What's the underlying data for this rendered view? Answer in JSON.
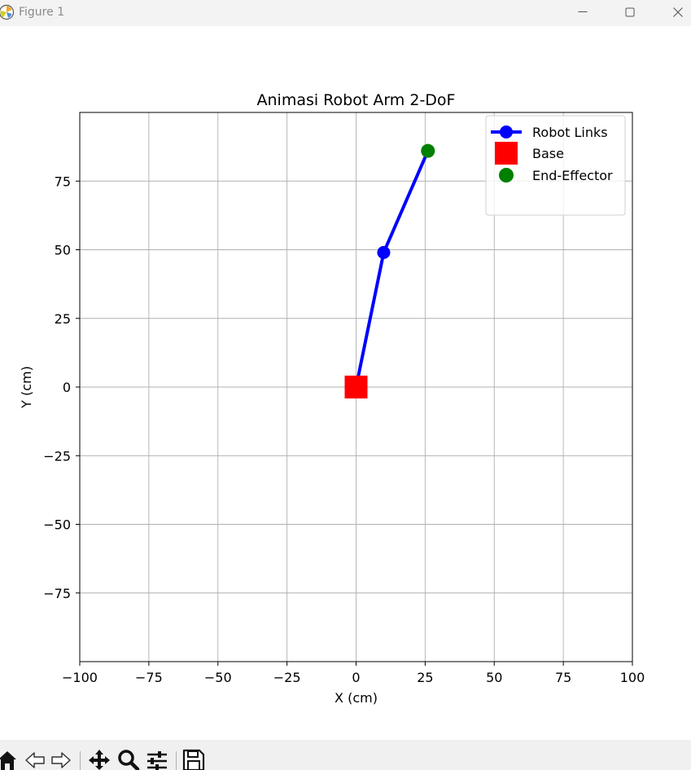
{
  "window": {
    "title": "Figure 1",
    "controls": [
      "minimize-icon",
      "maximize-icon",
      "close-icon"
    ]
  },
  "toolbar": {
    "tools": [
      "home-icon",
      "back-icon",
      "forward-icon",
      "pan-icon",
      "zoom-icon",
      "configure-subplots-icon",
      "save-icon"
    ]
  },
  "chart_data": {
    "type": "line",
    "title": "Animasi Robot Arm 2-DoF",
    "xlabel": "X (cm)",
    "ylabel": "Y (cm)",
    "xlim": [
      -100,
      100
    ],
    "ylim": [
      -100,
      100
    ],
    "grid": true,
    "xticks": [
      -100,
      -75,
      -50,
      -25,
      0,
      25,
      50,
      75,
      100
    ],
    "yticks": [
      -75,
      -50,
      -25,
      0,
      25,
      50,
      75
    ],
    "xtick_labels": [
      "−100",
      "−75",
      "−50",
      "−25",
      "0",
      "25",
      "50",
      "75",
      "100"
    ],
    "ytick_labels": [
      "−75",
      "−50",
      "−25",
      "0",
      "25",
      "50",
      "75"
    ],
    "legend_position": "top-right",
    "series": [
      {
        "name": "Robot Links",
        "x": [
          0,
          10,
          26
        ],
        "y": [
          0,
          49,
          86
        ],
        "color": "#0000ff",
        "marker": "circle"
      },
      {
        "name": "Base",
        "x": [
          0
        ],
        "y": [
          0
        ],
        "color": "#ff0000",
        "marker": "square"
      },
      {
        "name": "End-Effector",
        "x": [
          26
        ],
        "y": [
          86
        ],
        "color": "#008000",
        "marker": "circle"
      }
    ]
  }
}
